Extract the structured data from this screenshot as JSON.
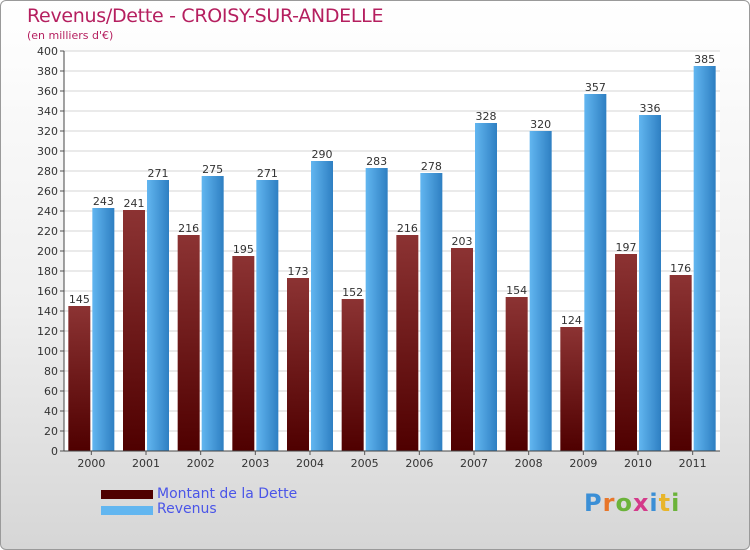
{
  "header": {
    "title": "Revenus/Dette - CROISY-SUR-ANDELLE",
    "subtitle": "(en milliers d'€)"
  },
  "legend": {
    "items": [
      {
        "label": "Montant de la Dette"
      },
      {
        "label": "Revenus"
      }
    ]
  },
  "logo": {
    "text": "Proxiti"
  },
  "colors": {
    "dette_top": "#8c3333",
    "dette_bottom": "#4f0000",
    "revenus_top": "#62b6f0",
    "revenus_bottom": "#2e7fc2",
    "legend_text": "#4a55e8",
    "title": "#b51f5f"
  },
  "chart_data": {
    "type": "bar",
    "title": "Revenus/Dette - CROISY-SUR-ANDELLE",
    "ylabel": "(en milliers d'€)",
    "xlabel": "",
    "categories": [
      "2000",
      "2001",
      "2002",
      "2003",
      "2004",
      "2005",
      "2006",
      "2007",
      "2008",
      "2009",
      "2010",
      "2011"
    ],
    "series": [
      {
        "name": "Montant de la Dette",
        "values": [
          145,
          241,
          216,
          195,
          173,
          152,
          216,
          203,
          154,
          124,
          197,
          176
        ]
      },
      {
        "name": "Revenus",
        "values": [
          243,
          271,
          275,
          271,
          290,
          283,
          278,
          328,
          320,
          357,
          336,
          385
        ]
      }
    ],
    "ylim": [
      0,
      400
    ],
    "yticks": [
      0,
      20,
      40,
      60,
      80,
      100,
      120,
      140,
      160,
      180,
      200,
      220,
      240,
      260,
      280,
      300,
      320,
      340,
      360,
      380,
      400
    ],
    "grid": true,
    "legend": "bottom-left"
  }
}
